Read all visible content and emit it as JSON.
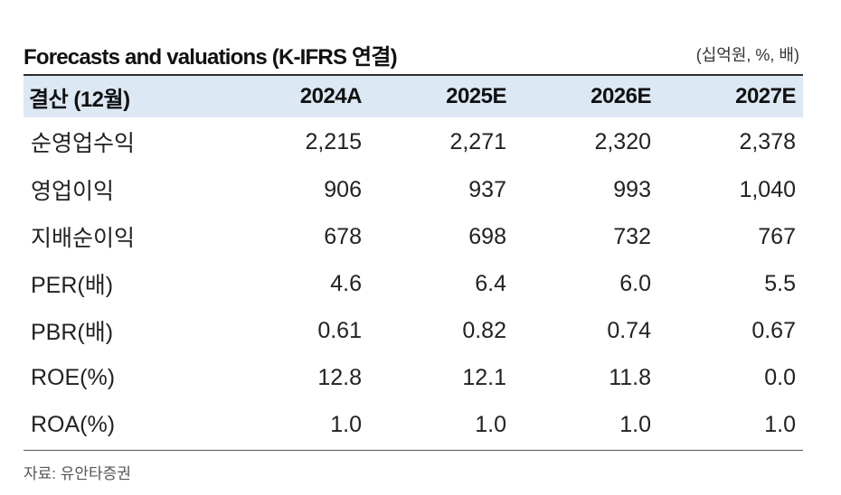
{
  "title": "Forecasts and valuations (K-IFRS 연결)",
  "unit": "(십억원, %, 배)",
  "header": {
    "label": "결산 (12월)",
    "years": [
      "2024A",
      "2025E",
      "2026E",
      "2027E"
    ]
  },
  "rows": [
    {
      "label": "순영업수익",
      "values": [
        "2,215",
        "2,271",
        "2,320",
        "2,378"
      ]
    },
    {
      "label": "영업이익",
      "values": [
        "906",
        "937",
        "993",
        "1,040"
      ]
    },
    {
      "label": "지배순이익",
      "values": [
        "678",
        "698",
        "732",
        "767"
      ]
    },
    {
      "label": "PER(배)",
      "values": [
        "4.6",
        "6.4",
        "6.0",
        "5.5"
      ]
    },
    {
      "label": "PBR(배)",
      "values": [
        "0.61",
        "0.82",
        "0.74",
        "0.67"
      ]
    },
    {
      "label": "ROE(%)",
      "values": [
        "12.8",
        "12.1",
        "11.8",
        "0.0"
      ]
    },
    {
      "label": "ROA(%)",
      "values": [
        "1.0",
        "1.0",
        "1.0",
        "1.0"
      ]
    }
  ],
  "source": "자료: 유안타증권",
  "colors": {
    "header_bg": "#dde8f5",
    "rule": "#2c2c2c"
  }
}
